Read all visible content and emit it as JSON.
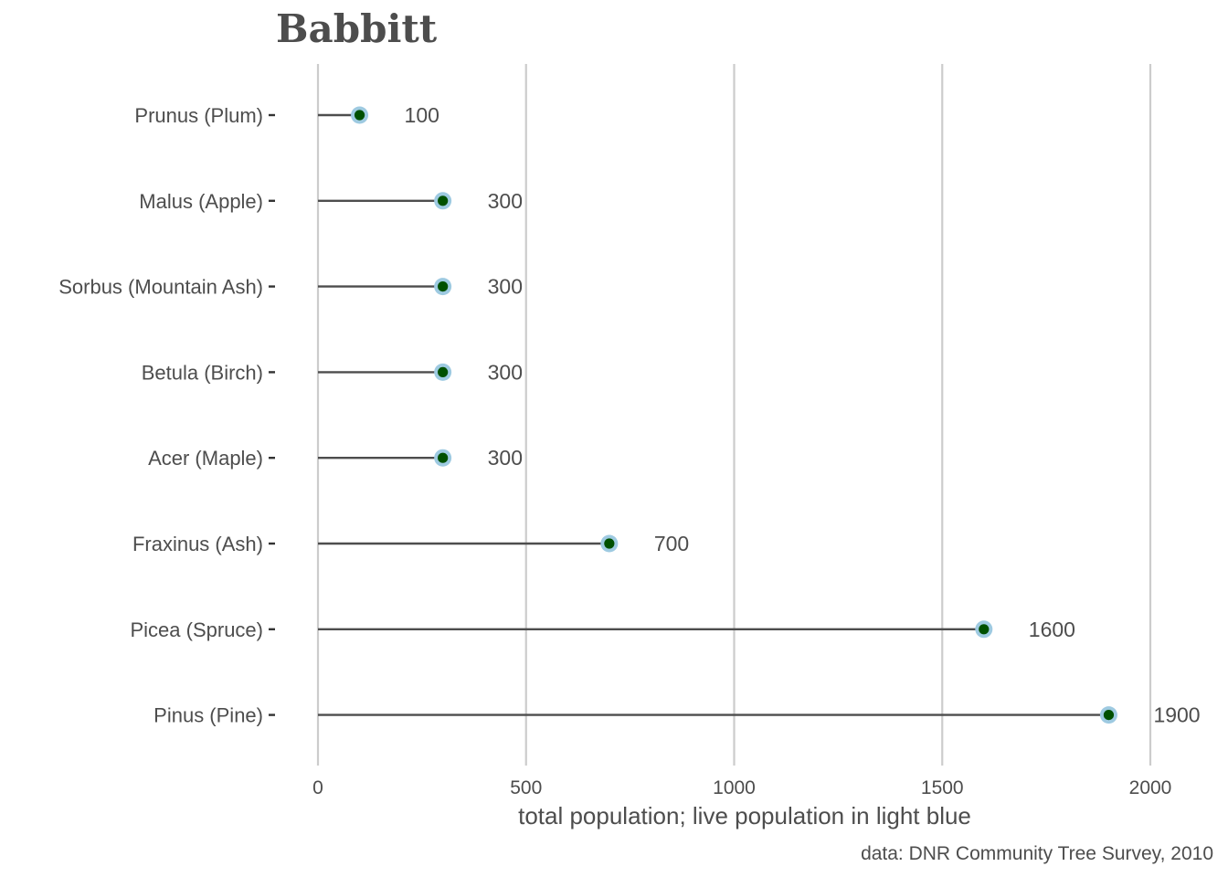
{
  "chart_data": {
    "type": "lollipop",
    "title": "Babbitt",
    "xlabel": "total population; live population in light blue",
    "caption": "data: DNR Community Tree Survey, 2010",
    "categories": [
      "Prunus (Plum)",
      "Malus (Apple)",
      "Sorbus (Mountain Ash)",
      "Betula (Birch)",
      "Acer (Maple)",
      "Fraxinus (Ash)",
      "Picea (Spruce)",
      "Pinus (Pine)"
    ],
    "series": [
      {
        "name": "total population",
        "values": [
          100,
          300,
          300,
          300,
          300,
          700,
          1600,
          1900
        ],
        "color": "#005000"
      },
      {
        "name": "live population",
        "values": [
          100,
          300,
          300,
          300,
          300,
          700,
          1600,
          1900
        ],
        "color": "#9ecae1"
      }
    ],
    "value_labels": [
      "100",
      "300",
      "300",
      "300",
      "300",
      "700",
      "1600",
      "1900"
    ],
    "xlim": [
      0,
      2000
    ],
    "xticks": [
      0,
      500,
      1000,
      1500,
      2000
    ],
    "xtick_labels": [
      "0",
      "500",
      "1000",
      "1500",
      "2000"
    ],
    "grid": "vertical major",
    "legend": "none"
  }
}
